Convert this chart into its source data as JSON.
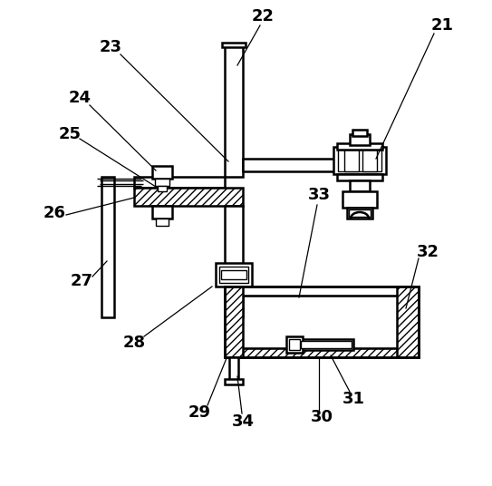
{
  "bg_color": "#ffffff",
  "line_color": "#000000",
  "lw_main": 1.8,
  "lw_inner": 1.0,
  "lw_leader": 0.9,
  "label_fontsize": 13,
  "figsize": [
    5.43,
    5.36
  ],
  "dpi": 100
}
